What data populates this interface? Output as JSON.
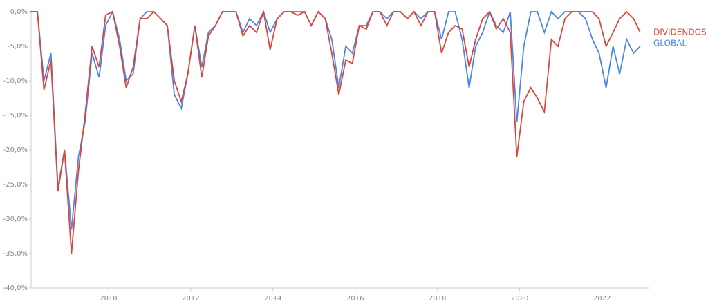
{
  "chart_data": {
    "type": "line",
    "x": [
      2008.1,
      2008.27,
      2008.43,
      2008.6,
      2008.77,
      2008.93,
      2009.1,
      2009.27,
      2009.43,
      2009.6,
      2009.77,
      2009.93,
      2010.1,
      2010.27,
      2010.43,
      2010.6,
      2010.77,
      2010.93,
      2011.1,
      2011.27,
      2011.43,
      2011.6,
      2011.77,
      2011.93,
      2012.1,
      2012.27,
      2012.43,
      2012.6,
      2012.77,
      2012.93,
      2013.1,
      2013.27,
      2013.43,
      2013.6,
      2013.77,
      2013.93,
      2014.1,
      2014.27,
      2014.43,
      2014.6,
      2014.77,
      2014.93,
      2015.1,
      2015.27,
      2015.43,
      2015.6,
      2015.77,
      2015.93,
      2016.1,
      2016.27,
      2016.43,
      2016.6,
      2016.77,
      2016.93,
      2017.1,
      2017.27,
      2017.43,
      2017.6,
      2017.77,
      2017.93,
      2018.1,
      2018.27,
      2018.43,
      2018.6,
      2018.77,
      2018.93,
      2019.1,
      2019.27,
      2019.43,
      2019.6,
      2019.77,
      2019.93,
      2020.1,
      2020.27,
      2020.43,
      2020.6,
      2020.77,
      2020.93,
      2021.1,
      2021.27,
      2021.43,
      2021.6,
      2021.77,
      2021.93,
      2022.1,
      2022.27,
      2022.43,
      2022.6,
      2022.77,
      2022.93
    ],
    "series": [
      {
        "name": "GLOBAL",
        "color": "#4a86e8",
        "values": [
          0,
          0,
          -10,
          -6,
          -25.5,
          -20,
          -31.5,
          -21,
          -16,
          -6,
          -9.5,
          -2,
          0,
          -4,
          -10,
          -9,
          -1,
          0,
          0,
          -1,
          -2,
          -12,
          -14,
          -9,
          -2,
          -8,
          -3,
          -2,
          0,
          0,
          0,
          -3,
          -1,
          -2,
          0,
          -3,
          -1,
          0,
          0,
          0,
          0,
          -2,
          0,
          -1,
          -4,
          -11,
          -5,
          -6,
          -2,
          -2,
          0,
          0,
          -1,
          0,
          0,
          -1,
          0,
          -1,
          0,
          0,
          -4,
          0,
          0,
          -4,
          -11,
          -5,
          -3,
          0,
          -2,
          -3,
          0,
          -16,
          -5,
          0,
          0,
          -3,
          0,
          -1,
          0,
          0,
          0,
          -1,
          -4,
          -6,
          -11,
          -5,
          -9,
          -4,
          -6,
          -5
        ]
      },
      {
        "name": "DIVIDENDOS",
        "color": "#d9463b",
        "values": [
          0,
          0,
          -11.3,
          -7,
          -26,
          -20,
          -35,
          -23,
          -15,
          -5,
          -8,
          -0.5,
          0,
          -5,
          -11,
          -8,
          -1,
          -1,
          0,
          -1,
          -2,
          -10,
          -13,
          -9,
          -2,
          -9.5,
          -3.5,
          -2,
          0,
          0,
          0,
          -3.5,
          -2,
          -3,
          0,
          -5.5,
          -1,
          0,
          0,
          -0.5,
          0,
          -2,
          0,
          -1,
          -6,
          -12,
          -7,
          -7.5,
          -2,
          -2.5,
          0,
          0,
          -2,
          0,
          0,
          -1,
          0,
          -2,
          0,
          0,
          -6,
          -3,
          -2,
          -2.5,
          -8,
          -4,
          -1,
          0,
          -2.5,
          -1,
          -3,
          -21,
          -13,
          -11,
          -12.5,
          -14.5,
          -4,
          -5,
          -1,
          0,
          0,
          0,
          0,
          -1,
          -5,
          -3,
          -1,
          0,
          -1,
          -3
        ]
      }
    ],
    "xlim": [
      2008,
      2023.15
    ],
    "xticks": [
      2010,
      2012,
      2014,
      2016,
      2018,
      2020,
      2022
    ],
    "ylim": [
      -40,
      0
    ],
    "yticks": [
      {
        "value": 0,
        "label": "0,0%"
      },
      {
        "value": -5,
        "label": "-5,0%"
      },
      {
        "value": -10,
        "label": "-10,0%"
      },
      {
        "value": -15,
        "label": "-15,0%"
      },
      {
        "value": -20,
        "label": "-20,0%"
      },
      {
        "value": -25,
        "label": "-25,0%"
      },
      {
        "value": -30,
        "label": "-30,0%"
      },
      {
        "value": -35,
        "label": "-35,0%"
      },
      {
        "value": -40,
        "label": "-40,0%"
      }
    ],
    "grid": false
  }
}
